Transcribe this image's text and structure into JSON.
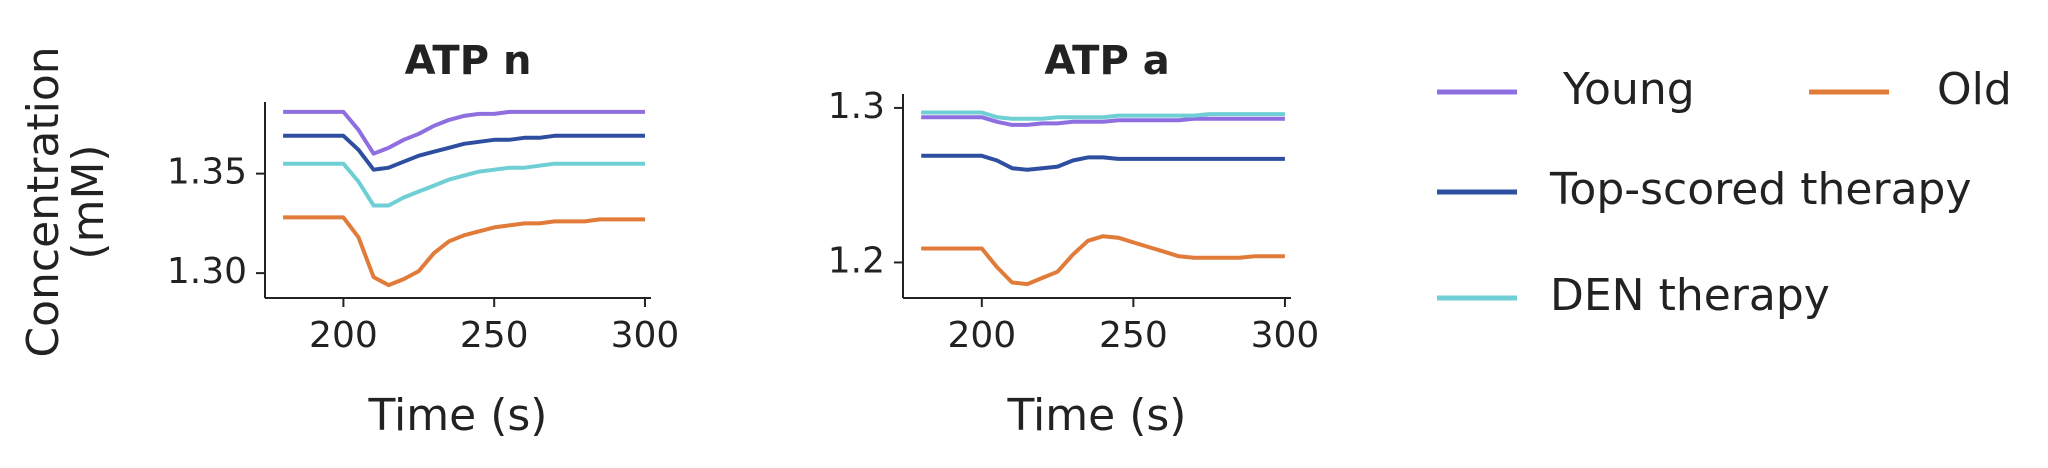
{
  "chart_data": [
    {
      "type": "line",
      "title": "ATP n",
      "xlabel": "Time (s)",
      "ylabel": [
        "Concentration",
        "(mM)"
      ],
      "x": [
        180,
        185,
        190,
        195,
        200,
        205,
        210,
        215,
        220,
        225,
        230,
        235,
        240,
        245,
        250,
        255,
        260,
        265,
        270,
        275,
        280,
        285,
        290,
        295,
        300
      ],
      "xlim": [
        174,
        302
      ],
      "xticks": [
        200,
        250,
        300
      ],
      "ylim": [
        1.2875,
        1.386
      ],
      "yticks": [
        {
          "value": 1.3,
          "label": "1.30"
        },
        {
          "value": 1.35,
          "label": "1.35"
        }
      ],
      "series": [
        {
          "name": "Young",
          "color": "#8f6fe0",
          "values": [
            1.381,
            1.381,
            1.381,
            1.381,
            1.381,
            1.372,
            1.36,
            1.363,
            1.367,
            1.37,
            1.374,
            1.377,
            1.379,
            1.38,
            1.38,
            1.381,
            1.381,
            1.381,
            1.381,
            1.381,
            1.381,
            1.381,
            1.381,
            1.381,
            1.381
          ]
        },
        {
          "name": "Old",
          "color": "#e07b39",
          "values": [
            1.328,
            1.328,
            1.328,
            1.328,
            1.328,
            1.318,
            1.298,
            1.294,
            1.297,
            1.301,
            1.31,
            1.316,
            1.319,
            1.321,
            1.323,
            1.324,
            1.325,
            1.325,
            1.326,
            1.326,
            1.326,
            1.327,
            1.327,
            1.327,
            1.327
          ]
        },
        {
          "name": "Top-scored therapy",
          "color": "#2e4fa0",
          "values": [
            1.369,
            1.369,
            1.369,
            1.369,
            1.369,
            1.362,
            1.352,
            1.353,
            1.356,
            1.359,
            1.361,
            1.363,
            1.365,
            1.366,
            1.367,
            1.367,
            1.368,
            1.368,
            1.369,
            1.369,
            1.369,
            1.369,
            1.369,
            1.369,
            1.369
          ]
        },
        {
          "name": "DEN therapy",
          "color": "#6fcfd4",
          "values": [
            1.355,
            1.355,
            1.355,
            1.355,
            1.355,
            1.346,
            1.334,
            1.334,
            1.338,
            1.341,
            1.344,
            1.347,
            1.349,
            1.351,
            1.352,
            1.353,
            1.353,
            1.354,
            1.355,
            1.355,
            1.355,
            1.355,
            1.355,
            1.355,
            1.355
          ]
        }
      ]
    },
    {
      "type": "line",
      "title": "ATP a",
      "xlabel": "Time (s)",
      "x": [
        180,
        185,
        190,
        195,
        200,
        205,
        210,
        215,
        220,
        225,
        230,
        235,
        240,
        245,
        250,
        255,
        260,
        265,
        270,
        275,
        280,
        285,
        290,
        295,
        300
      ],
      "xlim": [
        174,
        302
      ],
      "xticks": [
        200,
        250,
        300
      ],
      "ylim": [
        1.177,
        1.309
      ],
      "yticks": [
        1.2,
        1.3
      ],
      "series": [
        {
          "color": "#8f6fe0",
          "values": [
            1.294,
            1.294,
            1.294,
            1.294,
            1.294,
            1.291,
            1.289,
            1.289,
            1.29,
            1.29,
            1.291,
            1.291,
            1.291,
            1.292,
            1.292,
            1.292,
            1.292,
            1.292,
            1.293,
            1.293,
            1.293,
            1.293,
            1.293,
            1.293,
            1.293
          ]
        },
        {
          "color": "#e07b39",
          "values": [
            1.209,
            1.209,
            1.209,
            1.209,
            1.209,
            1.197,
            1.187,
            1.186,
            1.19,
            1.194,
            1.205,
            1.214,
            1.217,
            1.216,
            1.213,
            1.21,
            1.207,
            1.204,
            1.203,
            1.203,
            1.203,
            1.203,
            1.204,
            1.204,
            1.204
          ]
        },
        {
          "color": "#2e4fa0",
          "values": [
            1.269,
            1.269,
            1.269,
            1.269,
            1.269,
            1.266,
            1.261,
            1.26,
            1.261,
            1.262,
            1.266,
            1.268,
            1.268,
            1.267,
            1.267,
            1.267,
            1.267,
            1.267,
            1.267,
            1.267,
            1.267,
            1.267,
            1.267,
            1.267,
            1.267
          ]
        },
        {
          "color": "#6fcfd4",
          "values": [
            1.297,
            1.297,
            1.297,
            1.297,
            1.297,
            1.294,
            1.293,
            1.293,
            1.293,
            1.294,
            1.294,
            1.294,
            1.294,
            1.295,
            1.295,
            1.295,
            1.295,
            1.295,
            1.295,
            1.296,
            1.296,
            1.296,
            1.296,
            1.296,
            1.296
          ]
        }
      ]
    }
  ]
}
